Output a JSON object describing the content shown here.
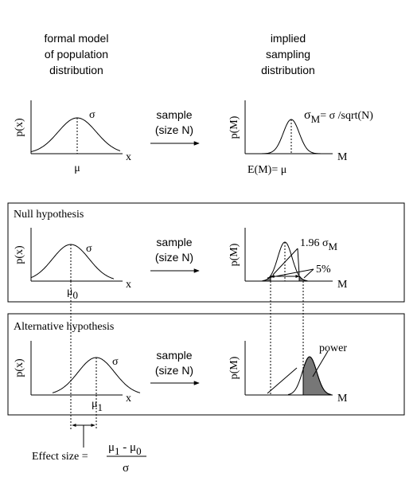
{
  "header": {
    "left_lines": [
      "formal model",
      "of population",
      "distribution"
    ],
    "right_lines": [
      "implied",
      "sampling",
      "distribution"
    ]
  },
  "arrow_label": {
    "line1": "sample",
    "line2": "(size N)"
  },
  "axes": {
    "px": "p(x)",
    "pM": "p(M)",
    "x": "x",
    "M": "M"
  },
  "top_row": {
    "sigma": "σ",
    "mu": "μ",
    "sigma_m_symbol": "σ",
    "sigma_m_sub": "M",
    "sigma_m_formula": "= σ /sqrt(N)",
    "expectation": "E(M)= μ"
  },
  "null_panel": {
    "title": "Null hypothesis",
    "sigma": "σ",
    "mu": "μ",
    "mu_sub": "0",
    "z_value": "1.96 σ",
    "z_sub": "M",
    "tail_percent": "5%"
  },
  "alt_panel": {
    "title": "Alternative hypothesis",
    "sigma": "σ",
    "mu": "μ",
    "mu_sub": "1",
    "power_label": "power"
  },
  "effect_size": {
    "label": "Effect size =",
    "num_a": "μ",
    "num_a_sub": "1",
    "num_op": " - μ",
    "num_b_sub": "0",
    "den": "σ"
  },
  "colors": {
    "shade": "#777777",
    "ink": "#000000"
  }
}
